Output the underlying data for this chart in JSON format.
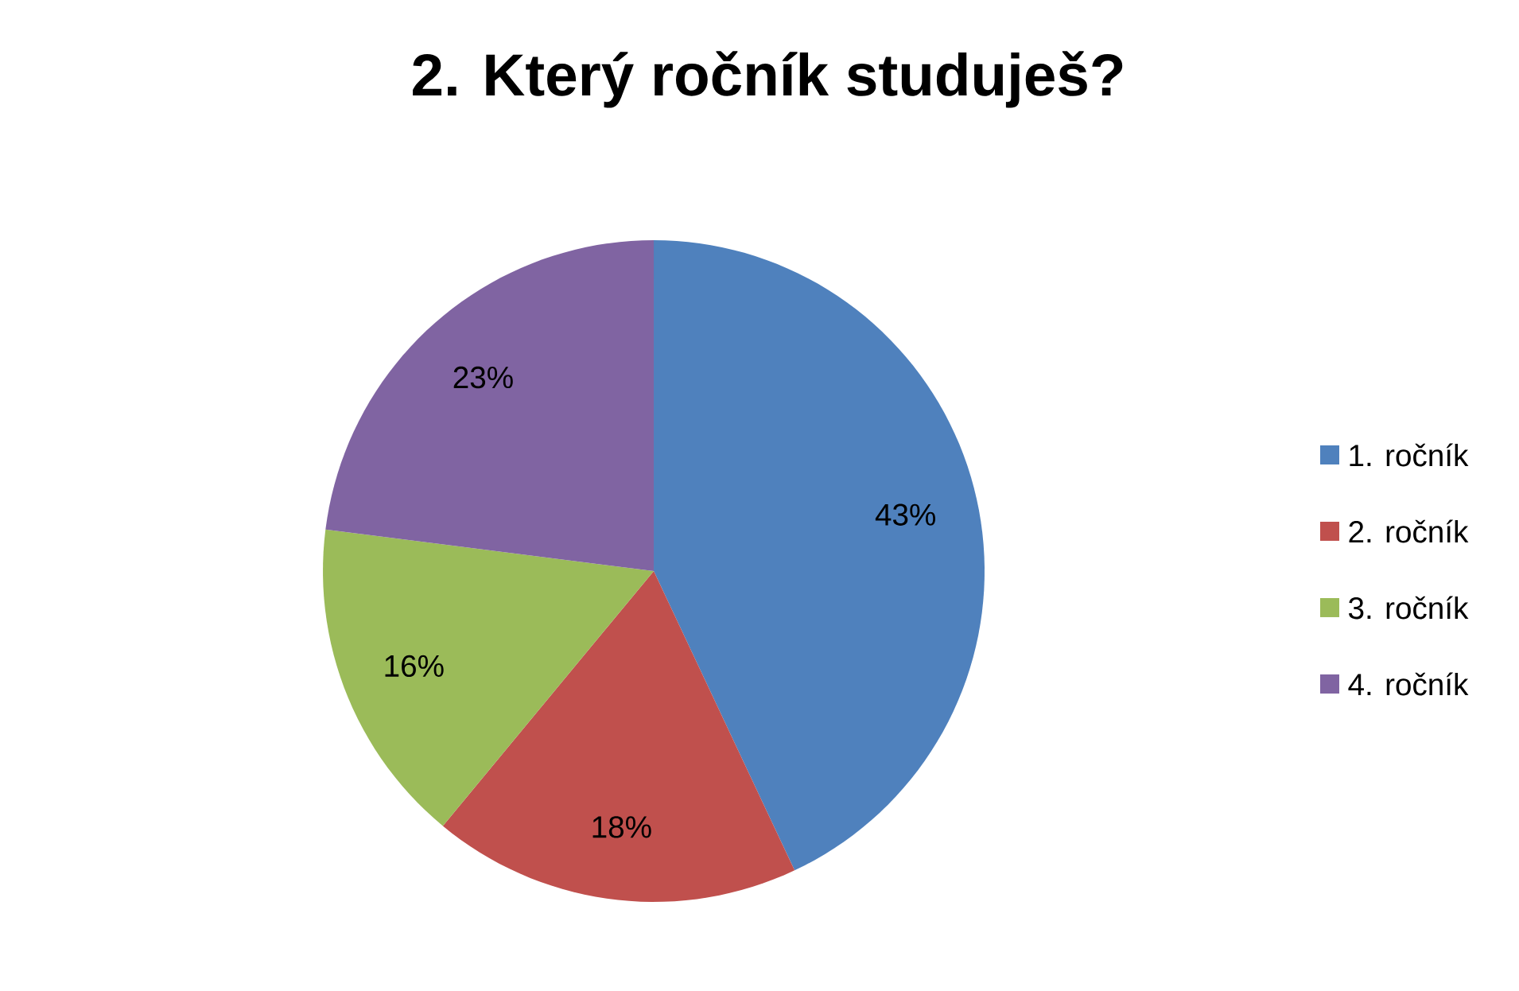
{
  "chart_data": {
    "type": "pie",
    "title": "2. Který ročník studuješ?",
    "categories": [
      "1. ročník",
      "2. ročník",
      "3. ročník",
      "4. ročník"
    ],
    "values": [
      43,
      18,
      16,
      23
    ],
    "value_labels": [
      "43%",
      "18%",
      "16%",
      "23%"
    ],
    "colors": [
      "#4f81bd",
      "#c0504d",
      "#9bbb59",
      "#8064a2"
    ],
    "legend": "right"
  }
}
